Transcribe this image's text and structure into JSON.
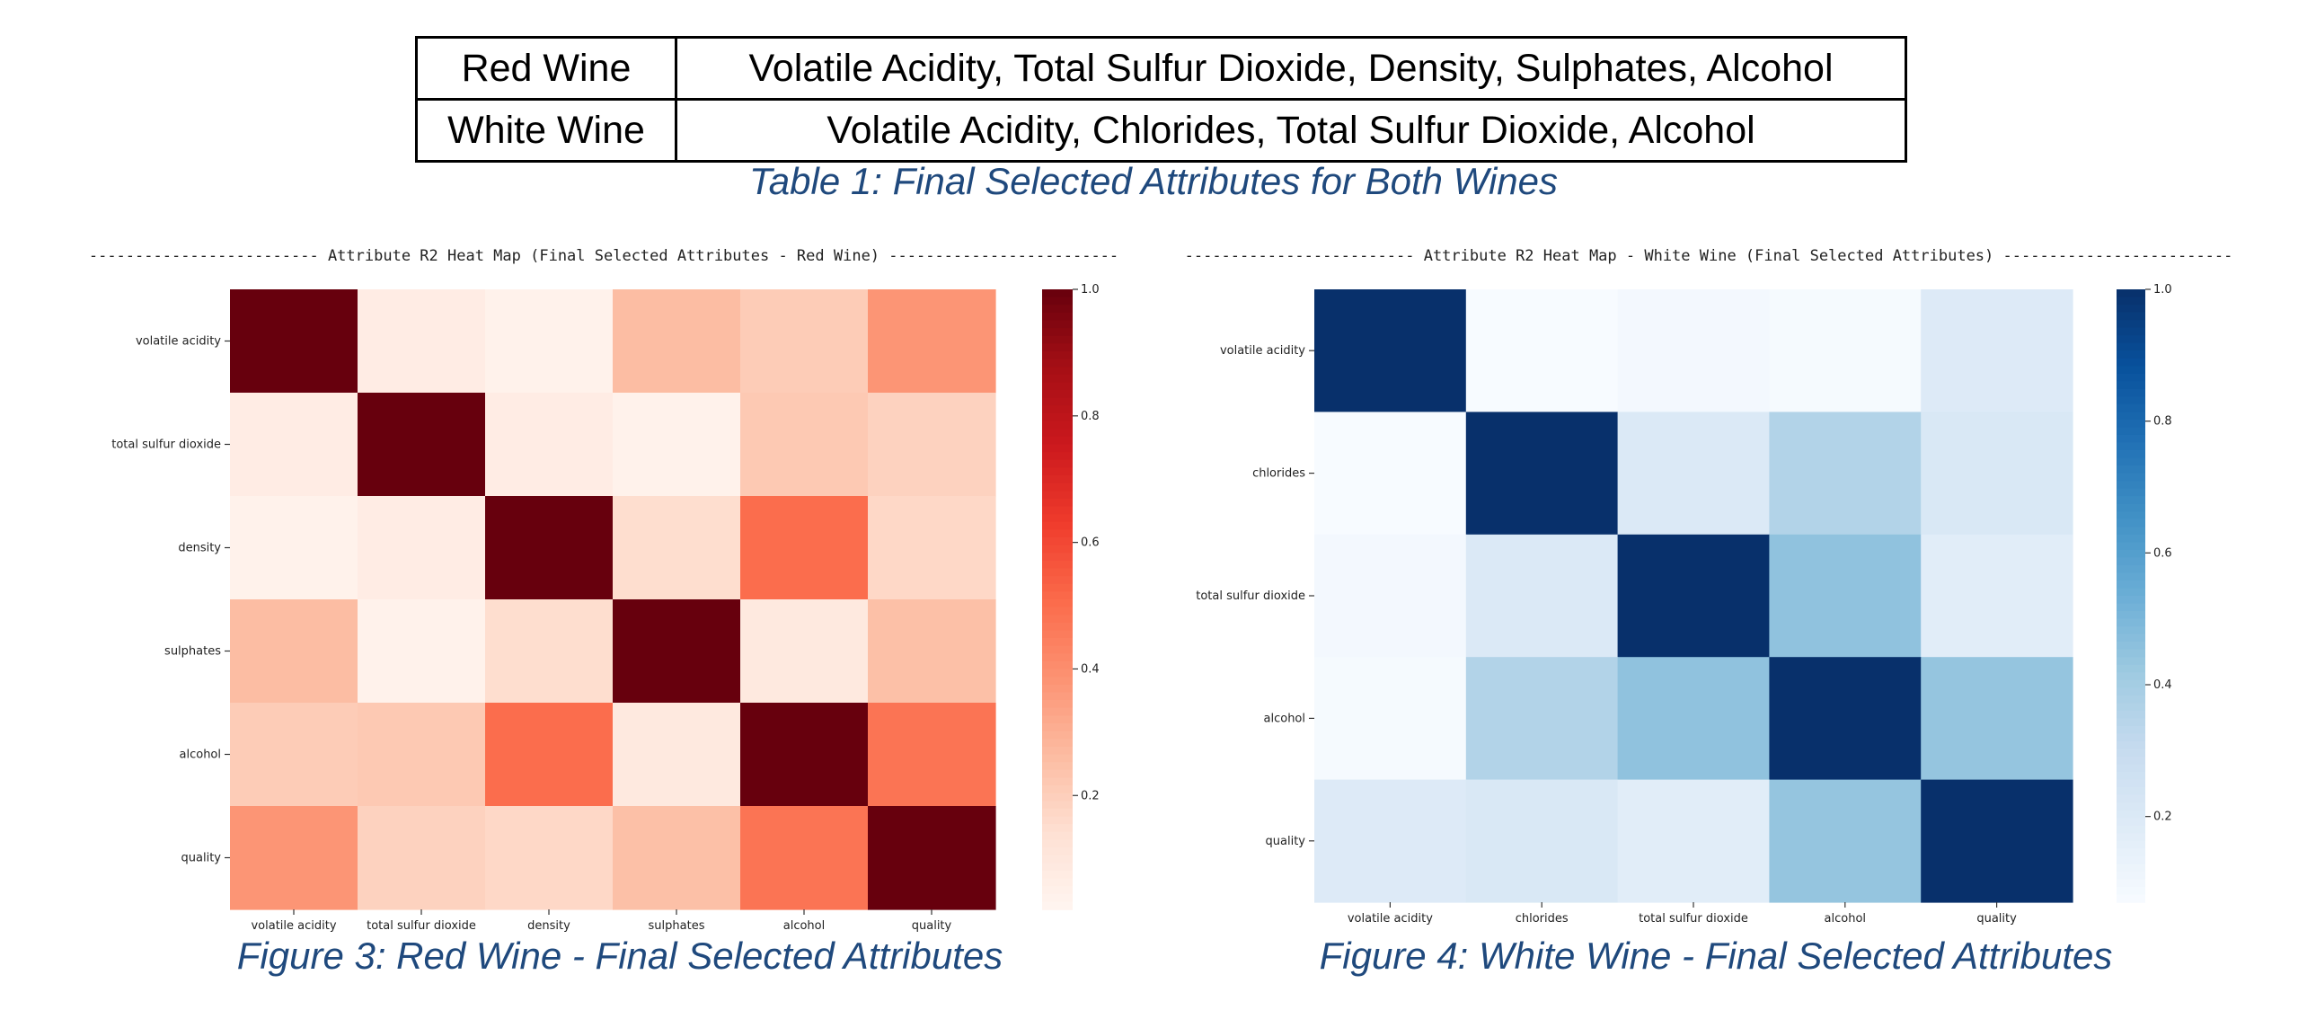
{
  "table": {
    "rows": [
      {
        "wine": "Red Wine",
        "attributes": "Volatile Acidity, Total Sulfur Dioxide, Density, Sulphates, Alcohol"
      },
      {
        "wine": "White Wine",
        "attributes": "Volatile Acidity, Chlorides, Total Sulfur Dioxide, Alcohol"
      }
    ],
    "caption": "Table 1: Final Selected Attributes for Both Wines"
  },
  "figures": [
    {
      "caption": "Figure 3: Red Wine - Final Selected Attributes"
    },
    {
      "caption": "Figure 4: White Wine - Final Selected Attributes"
    }
  ],
  "chart_data": [
    {
      "type": "heatmap",
      "title": "------------------------- Attribute R2 Heat Map (Final Selected Attributes - Red Wine) -------------------------",
      "colormap": "Reds",
      "labels": [
        "volatile acidity",
        "total sulfur dioxide",
        "density",
        "sulphates",
        "alcohol",
        "quality"
      ],
      "values": [
        [
          1.0,
          0.07,
          0.04,
          0.26,
          0.21,
          0.38
        ],
        [
          0.07,
          1.0,
          0.07,
          0.04,
          0.22,
          0.19
        ],
        [
          0.04,
          0.07,
          1.0,
          0.15,
          0.5,
          0.17
        ],
        [
          0.26,
          0.04,
          0.15,
          1.0,
          0.09,
          0.25
        ],
        [
          0.21,
          0.22,
          0.5,
          0.09,
          1.0,
          0.48
        ],
        [
          0.38,
          0.19,
          0.17,
          0.25,
          0.48,
          1.0
        ]
      ],
      "colorbar": {
        "range": [
          0.02,
          1.0
        ],
        "ticks": [
          0.2,
          0.4,
          0.6,
          0.8,
          1.0
        ],
        "tick_labels": [
          "0.2",
          "0.4",
          "0.6",
          "0.8",
          "1.0"
        ]
      }
    },
    {
      "type": "heatmap",
      "title": "------------------------- Attribute R2 Heat Map - White Wine (Final Selected Attributes) -------------------------",
      "colormap": "Blues",
      "labels": [
        "volatile acidity",
        "chlorides",
        "total sulfur dioxide",
        "alcohol",
        "quality"
      ],
      "values": [
        [
          1.0,
          0.07,
          0.09,
          0.08,
          0.19
        ],
        [
          0.07,
          1.0,
          0.2,
          0.36,
          0.21
        ],
        [
          0.09,
          0.2,
          1.0,
          0.45,
          0.17
        ],
        [
          0.08,
          0.36,
          0.45,
          1.0,
          0.44
        ],
        [
          0.19,
          0.21,
          0.17,
          0.44,
          1.0
        ]
      ],
      "colorbar": {
        "range": [
          0.07,
          1.0
        ],
        "ticks": [
          0.2,
          0.4,
          0.6,
          0.8,
          1.0
        ],
        "tick_labels": [
          "0.2",
          "0.4",
          "0.6",
          "0.8",
          "1.0"
        ]
      }
    }
  ]
}
